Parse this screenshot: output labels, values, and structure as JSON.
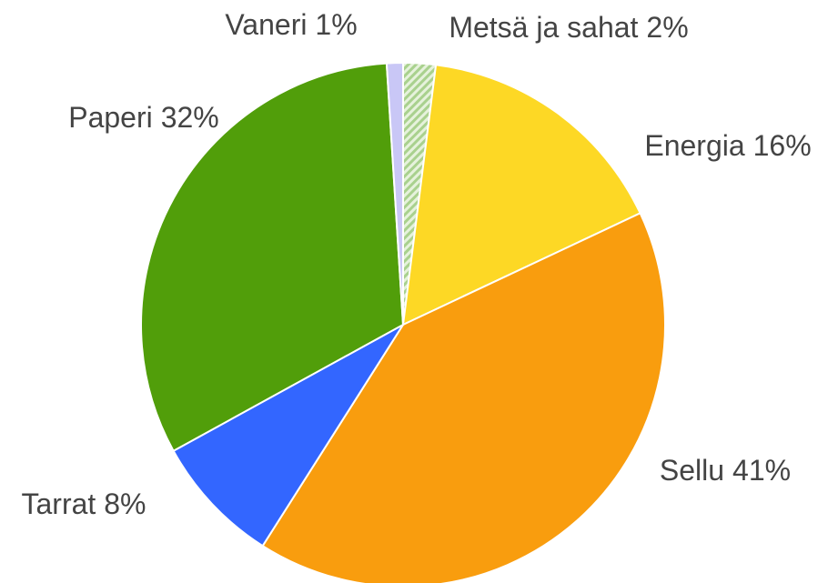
{
  "chart_data": {
    "type": "pie",
    "categories": [
      "Metsä ja sahat",
      "Energia",
      "Sellu",
      "Tarrat",
      "Paperi",
      "Vaneri"
    ],
    "values": [
      2,
      16,
      41,
      8,
      32,
      1
    ],
    "value_labels": [
      "2%",
      "16%",
      "41%",
      "8%",
      "32%",
      "1%"
    ],
    "colors": [
      "#a9d18e",
      "#fdd825",
      "#f99d0e",
      "#3366ff",
      "#519e0a",
      "#c9c7f6"
    ],
    "hatch": [
      true,
      false,
      false,
      false,
      false,
      false
    ]
  }
}
